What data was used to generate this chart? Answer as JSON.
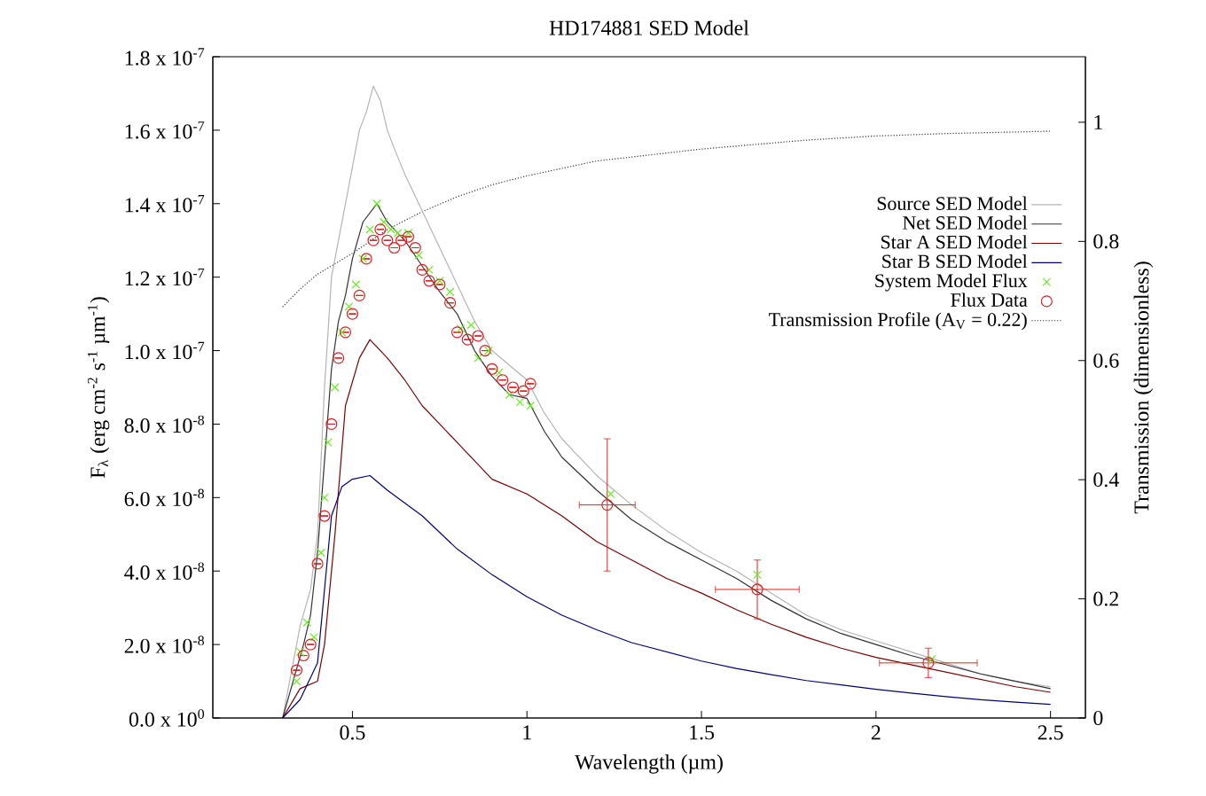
{
  "chart_data": {
    "type": "line",
    "title": "HD174881 SED Model",
    "xlabel": "Wavelength (µm)",
    "ylabel": "F$_{λ}$ (erg cm$^{-2}$ s$^{-1}$ µm$^{-1}$)",
    "y2label": "Transmission (dimensionless)",
    "xlim": [
      0.1,
      2.6
    ],
    "xticks": [
      0.5,
      1,
      1.5,
      2,
      2.5
    ],
    "ylim": [
      0,
      1.8e-07
    ],
    "yticks": [
      {
        "value": 0,
        "label": "0.0 x 10$^{0}$"
      },
      {
        "value": 2e-08,
        "label": "2.0 x 10$^{-8}$"
      },
      {
        "value": 4e-08,
        "label": "4.0 x 10$^{-8}$"
      },
      {
        "value": 6e-08,
        "label": "6.0 x 10$^{-8}$"
      },
      {
        "value": 8e-08,
        "label": "8.0 x 10$^{-8}$"
      },
      {
        "value": 1e-07,
        "label": "1.0 x 10$^{-7}$"
      },
      {
        "value": 1.2e-07,
        "label": "1.2 x 10$^{-7}$"
      },
      {
        "value": 1.4e-07,
        "label": "1.4 x 10$^{-7}$"
      },
      {
        "value": 1.6e-07,
        "label": "1.6 x 10$^{-7}$"
      },
      {
        "value": 1.8e-07,
        "label": "1.8 x 10$^{-7}$"
      }
    ],
    "y2lim": [
      0,
      1.11
    ],
    "y2ticks": [
      0,
      0.2,
      0.4,
      0.6,
      0.8,
      1
    ],
    "legend": "top right",
    "series": [
      {
        "name": "Source SED Model",
        "color": "#b4b4b4",
        "x": [
          0.3,
          0.32,
          0.35,
          0.38,
          0.4,
          0.42,
          0.44,
          0.46,
          0.48,
          0.5,
          0.52,
          0.54,
          0.56,
          0.58,
          0.6,
          0.62,
          0.65,
          0.7,
          0.75,
          0.8,
          0.85,
          0.9,
          0.95,
          1.0,
          1.05,
          1.1,
          1.2,
          1.3,
          1.4,
          1.5,
          1.6,
          1.7,
          1.8,
          1.9,
          2.0,
          2.1,
          2.2,
          2.3,
          2.4,
          2.5
        ],
        "values": [
          0,
          1e-08,
          2.5e-08,
          3.5e-08,
          5e-08,
          9e-08,
          1.2e-07,
          1.3e-07,
          1.4e-07,
          1.5e-07,
          1.6e-07,
          1.65e-07,
          1.72e-07,
          1.68e-07,
          1.6e-07,
          1.55e-07,
          1.48e-07,
          1.38e-07,
          1.28e-07,
          1.18e-07,
          1.08e-07,
          1e-07,
          9.6e-08,
          9.2e-08,
          8.3e-08,
          7.6e-08,
          6.6e-08,
          5.8e-08,
          5.1e-08,
          4.5e-08,
          4e-08,
          3.4e-08,
          2.8e-08,
          2.4e-08,
          2.1e-08,
          1.8e-08,
          1.5e-08,
          1.2e-08,
          1e-08,
          8.5e-09
        ]
      },
      {
        "name": "Net SED Model",
        "color": "#333333",
        "x": [
          0.3,
          0.33,
          0.36,
          0.38,
          0.4,
          0.42,
          0.44,
          0.46,
          0.48,
          0.5,
          0.53,
          0.57,
          0.6,
          0.65,
          0.7,
          0.75,
          0.8,
          0.85,
          0.9,
          0.95,
          1.0,
          1.05,
          1.1,
          1.2,
          1.3,
          1.4,
          1.5,
          1.6,
          1.7,
          1.8,
          1.9,
          2.0,
          2.1,
          2.2,
          2.3,
          2.4,
          2.5
        ],
        "values": [
          0,
          1e-08,
          2e-08,
          2.8e-08,
          4.5e-08,
          7e-08,
          9.5e-08,
          1.08e-07,
          1.15e-07,
          1.25e-07,
          1.35e-07,
          1.4e-07,
          1.35e-07,
          1.3e-07,
          1.23e-07,
          1.16e-07,
          1.1e-07,
          1e-07,
          9.3e-08,
          8.8e-08,
          8.7e-08,
          7.8e-08,
          7.1e-08,
          6.2e-08,
          5.4e-08,
          4.8e-08,
          4.3e-08,
          3.8e-08,
          3.2e-08,
          2.7e-08,
          2.3e-08,
          2e-08,
          1.7e-08,
          1.45e-08,
          1.2e-08,
          1e-08,
          8e-09
        ]
      },
      {
        "name": "Star A SED Model",
        "color": "#7a0000",
        "x": [
          0.3,
          0.35,
          0.4,
          0.42,
          0.45,
          0.48,
          0.52,
          0.55,
          0.6,
          0.65,
          0.7,
          0.75,
          0.8,
          0.85,
          0.9,
          0.95,
          1.0,
          1.1,
          1.2,
          1.3,
          1.4,
          1.5,
          1.6,
          1.7,
          1.8,
          1.9,
          2.0,
          2.1,
          2.2,
          2.3,
          2.4,
          2.5
        ],
        "values": [
          0,
          8e-09,
          1e-08,
          2e-08,
          5e-08,
          8.5e-08,
          9.8e-08,
          1.03e-07,
          9.8e-08,
          9.2e-08,
          8.5e-08,
          8e-08,
          7.5e-08,
          7e-08,
          6.5e-08,
          6.3e-08,
          6.1e-08,
          5.5e-08,
          4.8e-08,
          4.3e-08,
          3.8e-08,
          3.4e-08,
          2.95e-08,
          2.55e-08,
          2.2e-08,
          1.9e-08,
          1.65e-08,
          1.45e-08,
          1.25e-08,
          1.05e-08,
          8.5e-09,
          7e-09
        ]
      },
      {
        "name": "Star B SED Model",
        "color": "#00007a",
        "x": [
          0.3,
          0.35,
          0.4,
          0.42,
          0.44,
          0.47,
          0.5,
          0.55,
          0.6,
          0.7,
          0.8,
          0.9,
          1.0,
          1.1,
          1.2,
          1.3,
          1.4,
          1.5,
          1.6,
          1.7,
          1.8,
          1.9,
          2.0,
          2.1,
          2.2,
          2.3,
          2.4,
          2.5
        ],
        "values": [
          0,
          5e-09,
          1.5e-08,
          3.5e-08,
          5.5e-08,
          6.3e-08,
          6.5e-08,
          6.6e-08,
          6.2e-08,
          5.5e-08,
          4.6e-08,
          3.9e-08,
          3.3e-08,
          2.8e-08,
          2.4e-08,
          2.05e-08,
          1.8e-08,
          1.55e-08,
          1.35e-08,
          1.18e-08,
          1.02e-08,
          9e-09,
          7.8e-09,
          6.8e-09,
          5.8e-09,
          5e-09,
          4.3e-09,
          3.7e-09
        ]
      },
      {
        "name": "System Model Flux",
        "type": "scatter",
        "marker": "cross",
        "color": "#66ee22",
        "x": [
          0.34,
          0.35,
          0.37,
          0.39,
          0.41,
          0.42,
          0.43,
          0.45,
          0.47,
          0.49,
          0.51,
          0.53,
          0.55,
          0.57,
          0.59,
          0.61,
          0.63,
          0.66,
          0.69,
          0.72,
          0.75,
          0.78,
          0.81,
          0.84,
          0.86,
          0.89,
          0.92,
          0.95,
          0.98,
          1.01,
          1.24,
          1.66,
          2.16
        ],
        "values": [
          1e-08,
          1.8e-08,
          2.6e-08,
          2.2e-08,
          4.5e-08,
          6e-08,
          7.5e-08,
          9e-08,
          1.05e-07,
          1.12e-07,
          1.18e-07,
          1.25e-07,
          1.33e-07,
          1.4e-07,
          1.35e-07,
          1.33e-07,
          1.32e-07,
          1.32e-07,
          1.26e-07,
          1.22e-07,
          1.19e-07,
          1.16e-07,
          1.06e-07,
          1.07e-07,
          9.8e-08,
          1e-07,
          9.4e-08,
          8.8e-08,
          8.6e-08,
          8.5e-08,
          6.1e-08,
          3.9e-08,
          1.6e-08
        ]
      },
      {
        "name": "Flux Data",
        "type": "scatter",
        "marker": "circle",
        "color": "#e02020",
        "x": [
          0.34,
          0.36,
          0.38,
          0.4,
          0.42,
          0.44,
          0.46,
          0.48,
          0.5,
          0.52,
          0.54,
          0.56,
          0.58,
          0.6,
          0.62,
          0.64,
          0.66,
          0.68,
          0.7,
          0.72,
          0.75,
          0.78,
          0.8,
          0.83,
          0.86,
          0.88,
          0.9,
          0.93,
          0.96,
          0.99,
          1.01,
          1.23,
          1.66,
          2.15
        ],
        "values": [
          1.3e-08,
          1.7e-08,
          2e-08,
          4.2e-08,
          5.5e-08,
          8e-08,
          9.8e-08,
          1.05e-07,
          1.1e-07,
          1.15e-07,
          1.25e-07,
          1.3e-07,
          1.33e-07,
          1.3e-07,
          1.28e-07,
          1.3e-07,
          1.31e-07,
          1.28e-07,
          1.22e-07,
          1.19e-07,
          1.18e-07,
          1.13e-07,
          1.05e-07,
          1.03e-07,
          1.04e-07,
          1e-07,
          9.5e-08,
          9.2e-08,
          9e-08,
          8.9e-08,
          9.1e-08,
          5.8e-08,
          3.5e-08,
          1.5e-08
        ],
        "errors": [
          null,
          null,
          null,
          null,
          null,
          null,
          null,
          null,
          null,
          null,
          null,
          null,
          null,
          null,
          null,
          null,
          null,
          null,
          null,
          null,
          null,
          null,
          null,
          null,
          null,
          null,
          null,
          null,
          null,
          null,
          null,
          1.8e-08,
          8e-09,
          4e-09
        ],
        "xerrors": [
          null,
          null,
          null,
          null,
          null,
          null,
          null,
          null,
          null,
          null,
          null,
          null,
          null,
          null,
          null,
          null,
          null,
          null,
          null,
          null,
          null,
          null,
          null,
          null,
          null,
          null,
          null,
          null,
          null,
          null,
          null,
          0.08,
          0.12,
          0.14
        ]
      },
      {
        "name": "Transmission Profile (A$_{V}$ = 0.22)",
        "axis": "y2",
        "line_style": "dotted",
        "color": "#333333",
        "x": [
          0.3,
          0.35,
          0.4,
          0.5,
          0.6,
          0.7,
          0.8,
          0.9,
          1.0,
          1.2,
          1.5,
          1.8,
          2.0,
          2.2,
          2.5
        ],
        "values": [
          0.69,
          0.72,
          0.745,
          0.78,
          0.82,
          0.85,
          0.875,
          0.895,
          0.91,
          0.935,
          0.955,
          0.97,
          0.977,
          0.981,
          0.985
        ]
      }
    ]
  }
}
